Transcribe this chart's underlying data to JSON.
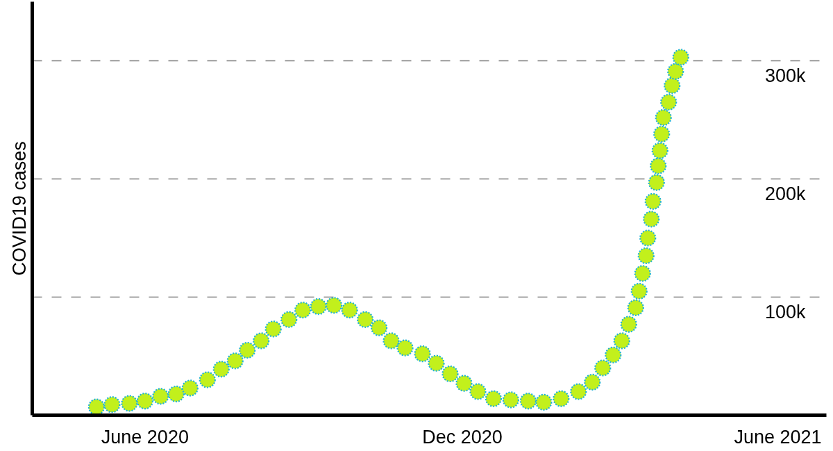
{
  "chart_data": {
    "type": "scatter",
    "ylabel": "COVID19 cases",
    "x": [
      "2020-05-04",
      "2020-05-13",
      "2020-05-23",
      "2020-06-01",
      "2020-06-10",
      "2020-06-19",
      "2020-06-27",
      "2020-07-07",
      "2020-07-15",
      "2020-07-23",
      "2020-07-30",
      "2020-08-07",
      "2020-08-14",
      "2020-08-23",
      "2020-08-31",
      "2020-09-09",
      "2020-09-18",
      "2020-09-27",
      "2020-10-06",
      "2020-10-14",
      "2020-10-21",
      "2020-10-29",
      "2020-11-08",
      "2020-11-16",
      "2020-11-24",
      "2020-12-02",
      "2020-12-10",
      "2020-12-19",
      "2020-12-29",
      "2021-01-08",
      "2021-01-17",
      "2021-01-27",
      "2021-02-06",
      "2021-02-14",
      "2021-02-20",
      "2021-02-26",
      "2021-03-03",
      "2021-03-07",
      "2021-03-11",
      "2021-03-13",
      "2021-03-15",
      "2021-03-17",
      "2021-03-18",
      "2021-03-20",
      "2021-03-21",
      "2021-03-23",
      "2021-03-24",
      "2021-03-25",
      "2021-03-26",
      "2021-03-27",
      "2021-03-30",
      "2021-04-01",
      "2021-04-03",
      "2021-04-06"
    ],
    "values": [
      7000,
      9000,
      10000,
      12000,
      16000,
      18000,
      23000,
      30000,
      39000,
      46000,
      55000,
      63000,
      73000,
      81000,
      89000,
      92000,
      93000,
      89000,
      81000,
      74000,
      63000,
      57000,
      52000,
      44000,
      35000,
      27000,
      20000,
      14000,
      13000,
      12000,
      11000,
      14000,
      20000,
      28000,
      40000,
      51000,
      63000,
      77000,
      91000,
      105000,
      120000,
      135000,
      150000,
      166000,
      181000,
      197000,
      211000,
      224000,
      238000,
      252000,
      265000,
      279000,
      291000,
      303000
    ],
    "color": "#c2f01c",
    "marker": "circle",
    "xlim": [
      "2020-03-28",
      "2021-06-29"
    ],
    "xticks": [
      {
        "value": "2020-06",
        "label": "June 2020"
      },
      {
        "value": "2020-12",
        "label": "Dec 2020"
      },
      {
        "value": "2021-06",
        "label": "June 2021"
      }
    ],
    "ylim": [
      0,
      350000
    ],
    "yticks": [
      {
        "value": 100000,
        "label": "100k"
      },
      {
        "value": 200000,
        "label": "200k"
      },
      {
        "value": 300000,
        "label": "300k"
      }
    ],
    "grid": "y"
  }
}
